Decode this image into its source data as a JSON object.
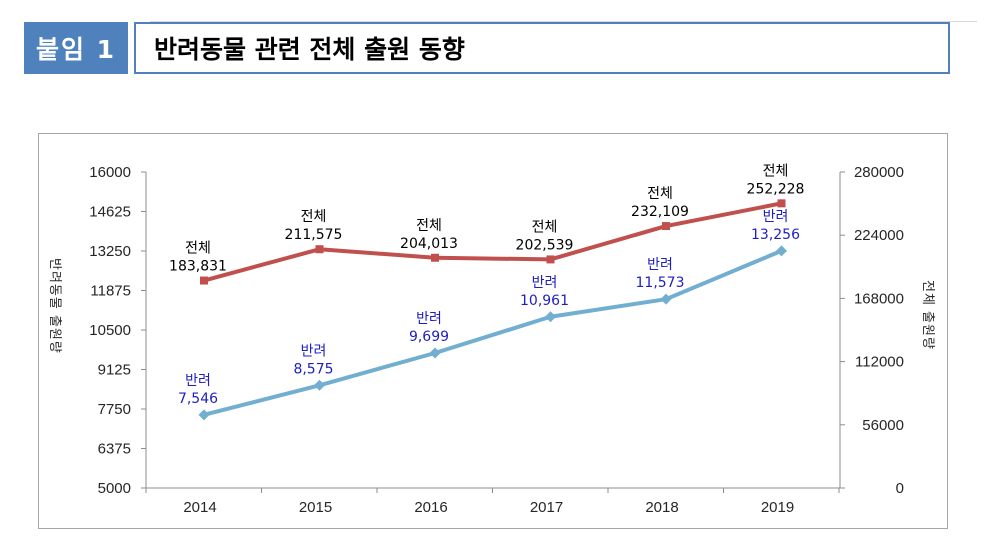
{
  "header": {
    "badge": "붙임 1",
    "title": "반려동물 관련 전체 출원 동향"
  },
  "colors": {
    "badge_bg": "#4f81bd",
    "title_border": "#4f81bd",
    "total_line": "#c0504d",
    "pet_line": "#72aecf",
    "pet_label": "#1f1fbf",
    "total_label": "#000000"
  },
  "chart_data": {
    "type": "line",
    "x": [
      "2014",
      "2015",
      "2016",
      "2017",
      "2018",
      "2019"
    ],
    "left_axis": {
      "label": "반려동물 출원량",
      "ylim": [
        5000,
        16000
      ],
      "ticks": [
        "5000",
        "6375",
        "7750",
        "9125",
        "10500",
        "11875",
        "13250",
        "14625",
        "16000"
      ]
    },
    "right_axis": {
      "label": "전체 출원량",
      "ylim": [
        0,
        280000
      ],
      "ticks": [
        "0",
        "56000",
        "112000",
        "168000",
        "224000",
        "280000"
      ]
    },
    "series": [
      {
        "name": "반려",
        "axis": "left",
        "values": [
          7546,
          8575,
          9699,
          10961,
          11573,
          13256
        ],
        "labels": [
          "7,546",
          "8,575",
          "9,699",
          "10,961",
          "11,573",
          "13,256"
        ]
      },
      {
        "name": "전체",
        "axis": "right",
        "values": [
          183831,
          211575,
          204013,
          202539,
          232109,
          252228
        ],
        "labels": [
          "183,831",
          "211,575",
          "204,013",
          "202,539",
          "232,109",
          "252,228"
        ]
      }
    ],
    "grid": false
  }
}
